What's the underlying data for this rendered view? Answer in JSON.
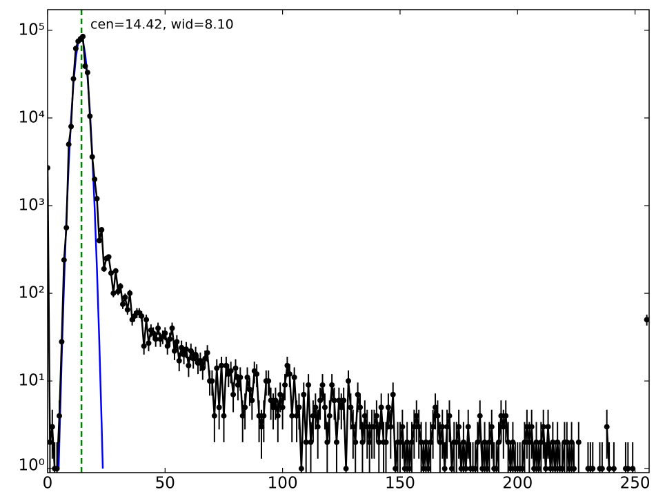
{
  "chart_data": {
    "type": "errorbar",
    "log_y": true,
    "xlim": [
      0,
      256
    ],
    "ylim": [
      0.9,
      172000
    ],
    "xticks": [
      0,
      50,
      100,
      150,
      200,
      250
    ],
    "yticks": [
      {
        "value": 1,
        "label": "10⁰"
      },
      {
        "value": 10,
        "label": "10¹"
      },
      {
        "value": 100,
        "label": "10²"
      },
      {
        "value": 1000,
        "label": "10³"
      },
      {
        "value": 10000,
        "label": "10⁴"
      },
      {
        "value": 100000,
        "label": "10⁵"
      }
    ],
    "vline": 14.42,
    "vline_color": "#008000",
    "annotation": "cen=14.42, wid=8.10",
    "annotation_color": "#008000",
    "series": [
      {
        "color": "#000000",
        "x": [
          0,
          1,
          2,
          3,
          4,
          5,
          6,
          7,
          8,
          9,
          10,
          11,
          12,
          13,
          14,
          15,
          16,
          17,
          18,
          19,
          20,
          21,
          22,
          23,
          24,
          25,
          26,
          27,
          28,
          29,
          30,
          31,
          32,
          33,
          34,
          35,
          36,
          37,
          38,
          39,
          40,
          41,
          42,
          43,
          44,
          45,
          46,
          47,
          48,
          49,
          50,
          51,
          52,
          53,
          54,
          55,
          56,
          57,
          58,
          59,
          60,
          61,
          62,
          63,
          64,
          65,
          66,
          67,
          68,
          69,
          70,
          71,
          72,
          73,
          74,
          75,
          76,
          77,
          78,
          79,
          80,
          81,
          82,
          83,
          84,
          85,
          86,
          87,
          88,
          89,
          90,
          91,
          92,
          93,
          94,
          95,
          96,
          97,
          98,
          99,
          100,
          101,
          102,
          103,
          104,
          105,
          106,
          107,
          108,
          109,
          110,
          111,
          112,
          113,
          114,
          115,
          116,
          117,
          118,
          119,
          120,
          121,
          122,
          123,
          124,
          125,
          126,
          127,
          128,
          129,
          130,
          131,
          132,
          133,
          134,
          135,
          136,
          137,
          138,
          139,
          140,
          141,
          142,
          143,
          144,
          145,
          146,
          147,
          148,
          149,
          150,
          151,
          152,
          153,
          154,
          155,
          156,
          157,
          158,
          159,
          160,
          161,
          162,
          163,
          164,
          165,
          166,
          167,
          168,
          169,
          170,
          171,
          172,
          173,
          174,
          175,
          176,
          177,
          178,
          179,
          180,
          181,
          182,
          183,
          184,
          185,
          186,
          187,
          188,
          189,
          190,
          191,
          192,
          193,
          194,
          195,
          196,
          197,
          198,
          199,
          200,
          201,
          202,
          203,
          204,
          205,
          206,
          207,
          208,
          209,
          210,
          211,
          212,
          213,
          214,
          215,
          216,
          217,
          218,
          219,
          220,
          221,
          222,
          223,
          224,
          225,
          226,
          227,
          228,
          229,
          230,
          231,
          232,
          233,
          234,
          235,
          236,
          237,
          238,
          239,
          240,
          241,
          242,
          243,
          244,
          245,
          246,
          247,
          248,
          249,
          250,
          251,
          252,
          253,
          254,
          255
        ],
        "values": [
          2700,
          2,
          3,
          1,
          1,
          4,
          28,
          240,
          560,
          5000,
          8000,
          28000,
          62000,
          75000,
          80000,
          85000,
          39000,
          33000,
          10500,
          3600,
          2000,
          1200,
          400,
          530,
          190,
          250,
          260,
          170,
          100,
          180,
          105,
          120,
          75,
          90,
          65,
          100,
          50,
          55,
          60,
          60,
          55,
          25,
          50,
          27,
          38,
          35,
          30,
          40,
          30,
          32,
          35,
          25,
          30,
          40,
          22,
          28,
          17,
          24,
          20,
          23,
          15,
          22,
          18,
          20,
          16,
          17,
          14,
          18,
          21,
          10,
          10,
          4,
          14,
          5,
          15,
          4,
          15,
          12,
          13,
          7,
          14,
          9,
          11,
          4,
          5,
          11,
          8,
          6,
          13,
          12,
          4,
          3,
          4,
          10,
          10,
          6,
          5,
          6,
          4,
          7,
          5,
          9,
          15,
          12,
          4,
          11,
          4,
          5,
          1,
          7,
          2,
          9,
          2,
          4,
          5,
          3,
          6,
          9,
          5,
          2,
          4,
          9,
          6,
          2,
          6,
          5,
          6,
          1,
          10,
          5,
          3,
          2,
          7,
          5,
          2,
          4,
          3,
          2,
          3,
          3,
          4,
          2,
          5,
          2,
          2,
          5,
          3,
          7,
          1,
          2,
          2,
          3,
          1,
          2,
          1,
          2,
          3,
          4,
          3,
          2,
          1,
          2,
          1,
          2,
          3,
          5,
          4,
          2,
          3,
          1,
          3,
          4,
          1,
          2,
          2,
          3,
          1,
          2,
          1,
          3,
          1,
          1,
          1,
          2,
          4,
          1,
          2,
          1,
          2,
          3,
          1,
          1,
          2,
          4,
          3,
          4,
          2,
          1,
          2,
          1,
          1,
          1,
          1,
          2,
          3,
          2,
          3,
          1,
          2,
          1,
          2,
          3,
          1,
          3,
          1,
          2,
          1,
          2,
          1,
          1,
          2,
          2,
          1,
          2,
          1,
          null,
          2,
          null,
          null,
          null,
          1,
          1,
          1,
          null,
          null,
          1,
          1,
          null,
          3,
          1,
          null,
          1,
          null,
          null,
          null,
          null,
          1,
          1,
          null,
          1,
          null,
          null,
          null,
          null,
          null,
          50
        ],
        "errors": [
          52,
          1.4,
          1.7,
          1,
          1,
          2,
          5.3,
          15.5,
          23.7,
          70.7,
          89.4,
          167,
          249,
          274,
          283,
          292,
          197,
          182,
          102,
          60,
          44.7,
          34.6,
          20,
          23,
          13.8,
          15.8,
          16.1,
          13,
          10,
          13.4,
          10.2,
          11,
          8.7,
          9.5,
          8.1,
          10,
          7.1,
          7.4,
          7.7,
          7.7,
          7.4,
          5,
          7.1,
          5.2,
          6.2,
          5.9,
          5.5,
          6.3,
          5.5,
          5.7,
          5.9,
          5,
          5.5,
          6.3,
          4.7,
          5.3,
          4.1,
          4.9,
          4.5,
          4.8,
          3.9,
          4.7,
          4.2,
          4.5,
          4,
          4.1,
          3.7,
          4.2,
          4.6,
          3.2,
          3.2,
          2,
          3.7,
          2.2,
          3.9,
          2,
          3.9,
          3.5,
          3.6,
          2.6,
          3.7,
          3,
          3.3,
          2,
          2.2,
          3.3,
          2.8,
          2.4,
          3.6,
          3.5,
          2,
          1.7,
          2,
          3.2,
          3.2,
          2.4,
          2.2,
          2.4,
          2,
          2.6,
          2.2,
          3,
          3.9,
          3.5,
          2,
          3.3,
          2,
          2.2,
          1,
          2.6,
          1.4,
          3,
          1.4,
          2,
          2.2,
          1.7,
          2.4,
          3,
          2.2,
          1.4,
          2,
          3,
          2.4,
          1.4,
          2.4,
          2.2,
          2.4,
          1,
          3.2,
          2.2,
          1.7,
          1.4,
          2.6,
          2.2,
          1.4,
          2,
          1.7,
          1.4,
          1.7,
          1.7,
          2,
          1.4,
          2.2,
          1.4,
          1.4,
          2.2,
          1.7,
          2.6,
          1,
          1.4,
          1.4,
          1.7,
          1,
          1.4,
          1,
          1.4,
          1.7,
          2,
          1.7,
          1.4,
          1,
          1.4,
          1,
          1.4,
          1.7,
          2.2,
          2,
          1.4,
          1.7,
          1,
          1.7,
          2,
          1,
          1.4,
          1.4,
          1.7,
          1,
          1.4,
          1,
          1.7,
          1,
          1,
          1,
          1.4,
          2,
          1,
          1.4,
          1,
          1.4,
          1.7,
          1,
          1,
          1.4,
          2,
          1.7,
          2,
          1.4,
          1,
          1.4,
          1,
          1,
          1,
          1,
          1.4,
          1.7,
          1.4,
          1.7,
          1,
          1.4,
          1,
          1.4,
          1.7,
          1,
          1.7,
          1,
          1.4,
          1,
          1.4,
          1,
          1,
          1.4,
          1.4,
          1,
          1.4,
          1,
          null,
          1.4,
          null,
          null,
          null,
          1,
          1,
          1,
          null,
          null,
          1,
          1,
          null,
          1.7,
          1,
          null,
          1,
          null,
          null,
          null,
          null,
          1,
          1,
          null,
          1,
          null,
          null,
          null,
          null,
          null,
          7.1
        ]
      },
      {
        "color": "#0000ff",
        "x": [
          4.7,
          5,
          6,
          7,
          8,
          9,
          10,
          11,
          12,
          13,
          14,
          15,
          16,
          17,
          18,
          19,
          20,
          21,
          22,
          23,
          23.5
        ],
        "values": [
          1,
          2.04,
          18.5,
          131,
          713,
          3010,
          9810,
          24800,
          48300,
          72800,
          84900,
          76600,
          53500,
          28900,
          12100,
          3900,
          973,
          189,
          28.2,
          3.22,
          1
        ]
      }
    ]
  }
}
